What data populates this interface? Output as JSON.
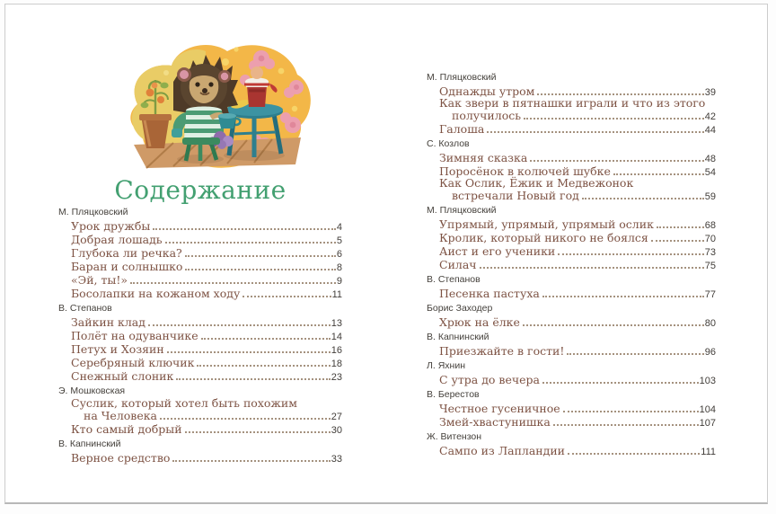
{
  "page": {
    "title": "Содержание"
  },
  "colors": {
    "title_green": "#43a071",
    "entry_brown": "#7d5243",
    "author_gray": "#45413c",
    "page_number": "#413d39",
    "dot_leader": "#a5927f",
    "page_background": "#ffffff"
  },
  "toc": {
    "left": [
      {
        "author": "М. Пляцковский",
        "items": [
          {
            "title": "Урок дружбы",
            "page": "4"
          },
          {
            "title": "Добрая лошадь",
            "page": "5"
          },
          {
            "title": "Глубока ли речка?",
            "page": "6"
          },
          {
            "title": "Баран и солнышко",
            "page": "8"
          },
          {
            "title": "«Эй, ты!»",
            "page": "9"
          },
          {
            "title": "Босолапки на кожаном ходу",
            "page": "11"
          }
        ]
      },
      {
        "author": "В. Степанов",
        "items": [
          {
            "title": "Зайкин клад",
            "page": "13"
          },
          {
            "title": "Полёт на одуванчике",
            "page": "14"
          },
          {
            "title": "Петух и Хозяин",
            "page": "16"
          },
          {
            "title": "Серебряный ключик",
            "page": "18"
          },
          {
            "title": "Снежный слоник",
            "page": "23"
          }
        ]
      },
      {
        "author": "Э. Мошковская",
        "items": [
          {
            "title": "Суслик, который хотел быть похожим",
            "title2": "на Человека",
            "page": "27"
          },
          {
            "title": "Кто самый добрый",
            "page": "30"
          }
        ]
      },
      {
        "author": "В. Капнинский",
        "items": [
          {
            "title": "Верное средство",
            "page": "33"
          }
        ]
      }
    ],
    "right": [
      {
        "author": "М. Пляцковский",
        "items": [
          {
            "title": "Однажды утром",
            "page": "39"
          },
          {
            "title": "Как звери в пятнашки играли и что из этого",
            "title2": "получилось",
            "page": "42"
          },
          {
            "title": "Галоша",
            "page": "44"
          }
        ]
      },
      {
        "author": "С. Козлов",
        "items": [
          {
            "title": "Зимняя сказка",
            "page": "48"
          },
          {
            "title": "Поросёнок в колючей шубке",
            "page": "54"
          },
          {
            "title": "Как Ослик, Ёжик и Медвежонок",
            "title2": "встречали Новый год",
            "page": "59"
          }
        ]
      },
      {
        "author": "М. Пляцковский",
        "items": [
          {
            "title": "Упрямый, упрямый, упрямый ослик",
            "page": "68"
          },
          {
            "title": "Кролик, который никого не боялся",
            "page": "70"
          },
          {
            "title": "Аист и его ученики",
            "page": "73"
          },
          {
            "title": "Силач",
            "page": "75"
          }
        ]
      },
      {
        "author": "В. Степанов",
        "items": [
          {
            "title": "Песенка пастуха",
            "page": "77"
          }
        ]
      },
      {
        "author": "Борис Заходер",
        "items": [
          {
            "title": "Хрюк на ёлке",
            "page": "80"
          }
        ]
      },
      {
        "author": "В. Капнинский",
        "items": [
          {
            "title": "Приезжайте в гости!",
            "page": "96"
          }
        ]
      },
      {
        "author": "Л. Яхнин",
        "items": [
          {
            "title": "С утра до вечера",
            "page": "103"
          }
        ]
      },
      {
        "author": "В. Берестов",
        "items": [
          {
            "title": "Честное гусеничное",
            "page": "104"
          },
          {
            "title": "Змей-хвастунишка",
            "page": "107"
          }
        ]
      },
      {
        "author": "Ж. Витензон",
        "items": [
          {
            "title": "Сампо из Лапландии",
            "page": "111"
          }
        ]
      }
    ]
  }
}
